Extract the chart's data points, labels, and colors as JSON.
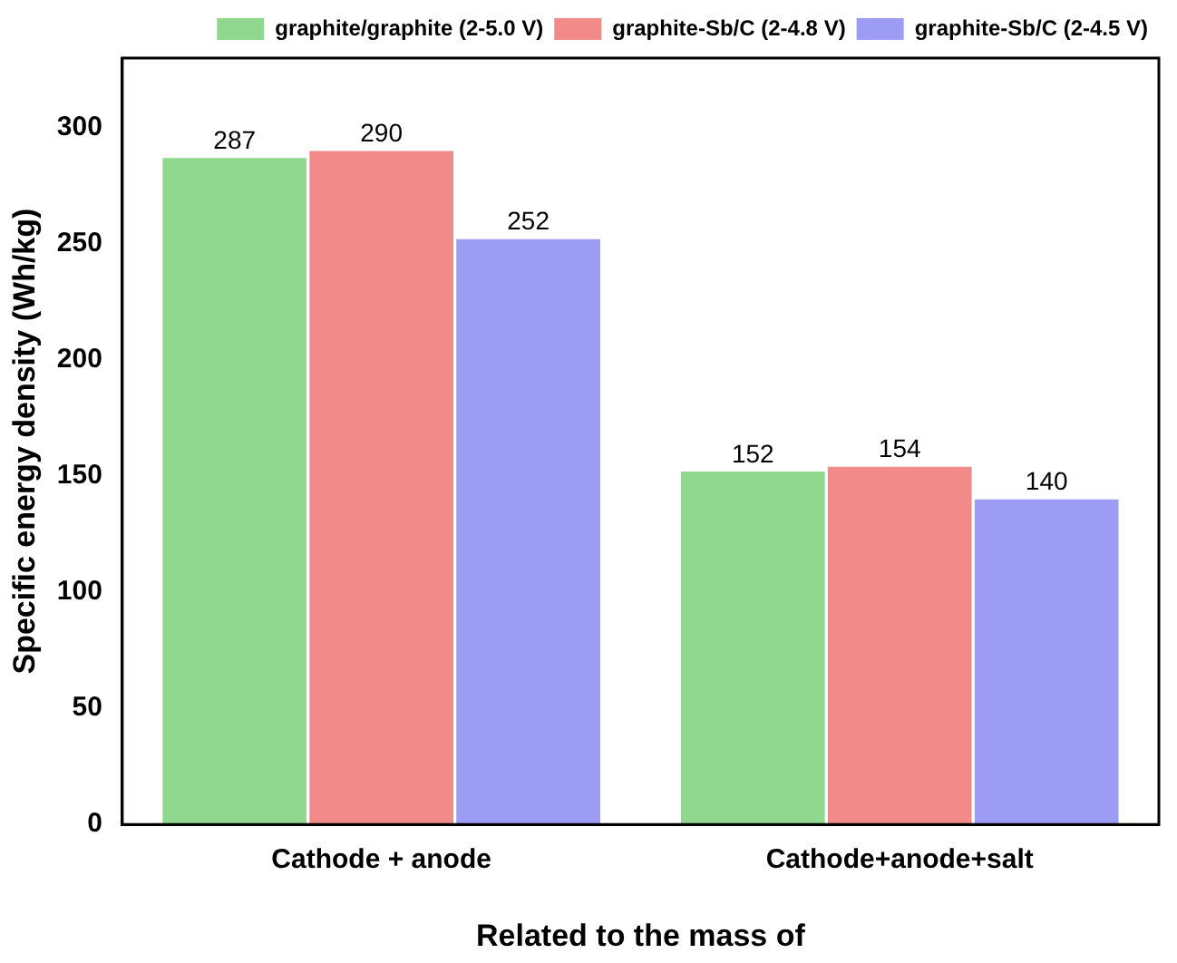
{
  "chart_data": {
    "type": "bar",
    "xlabel": "Related to the mass of",
    "ylabel": "Specific energy density (Wh/kg)",
    "categories": [
      "Cathode + anode",
      "Cathode+anode+salt"
    ],
    "series": [
      {
        "name": "graphite/graphite (2-5.0 V)",
        "color": "#90d890",
        "values": [
          287,
          152
        ]
      },
      {
        "name": "graphite-Sb/C (2-4.8 V)",
        "color": "#f28a8a",
        "values": [
          290,
          154
        ]
      },
      {
        "name": "graphite-Sb/C (2-4.5 V)",
        "color": "#9c9cf5",
        "values": [
          252,
          140
        ]
      }
    ],
    "ylim": [
      0,
      330
    ],
    "yticks": [
      0,
      50,
      100,
      150,
      200,
      250,
      300
    ],
    "grid": false,
    "legend": "top right",
    "data_labels": true
  }
}
